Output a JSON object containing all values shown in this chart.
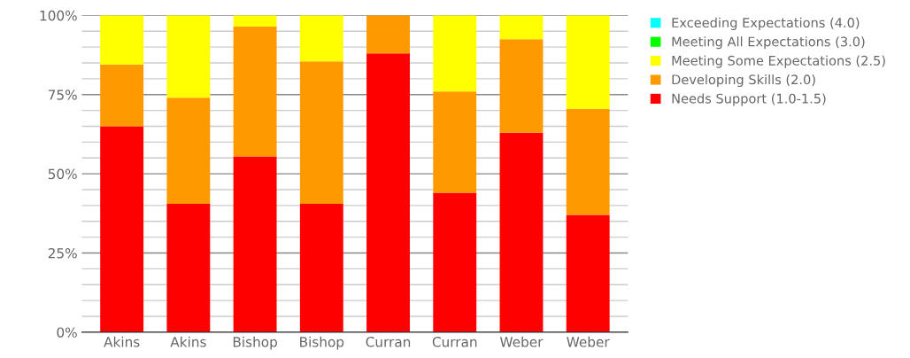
{
  "chart_data": {
    "type": "bar",
    "stacked": true,
    "categories": [
      "Akins",
      "Akins",
      "Bishop",
      "Bishop",
      "Curran",
      "Curran",
      "Weber",
      "Weber"
    ],
    "series": [
      {
        "name": "Needs Support (1.0-1.5)",
        "color": "#ff0000",
        "values": [
          65,
          40.5,
          55.5,
          40.5,
          88,
          44,
          63,
          37
        ]
      },
      {
        "name": "Developing Skills (2.0)",
        "color": "#ff9900",
        "values": [
          19.5,
          33.5,
          41,
          45,
          12,
          32,
          29.5,
          33.5
        ]
      },
      {
        "name": "Meeting Some Expectations (2.5)",
        "color": "#ffff00",
        "values": [
          15.5,
          26,
          3.5,
          14.5,
          0,
          24,
          7.5,
          29.5
        ]
      },
      {
        "name": "Meeting All Expectations (3.0)",
        "color": "#00ff00",
        "values": [
          0,
          0,
          0,
          0,
          0,
          0,
          0,
          0
        ]
      },
      {
        "name": "Exceeding Expectations (4.0)",
        "color": "#00ffff",
        "values": [
          0,
          0,
          0,
          0,
          0,
          0,
          0,
          0
        ]
      }
    ],
    "ylim": [
      0,
      100
    ],
    "yticks": [
      {
        "value": 0,
        "label": "0%"
      },
      {
        "value": 25,
        "label": "25%"
      },
      {
        "value": 50,
        "label": "50%"
      },
      {
        "value": 75,
        "label": "75%"
      },
      {
        "value": 100,
        "label": "100%"
      }
    ],
    "grid": "y",
    "legend": "top right"
  }
}
